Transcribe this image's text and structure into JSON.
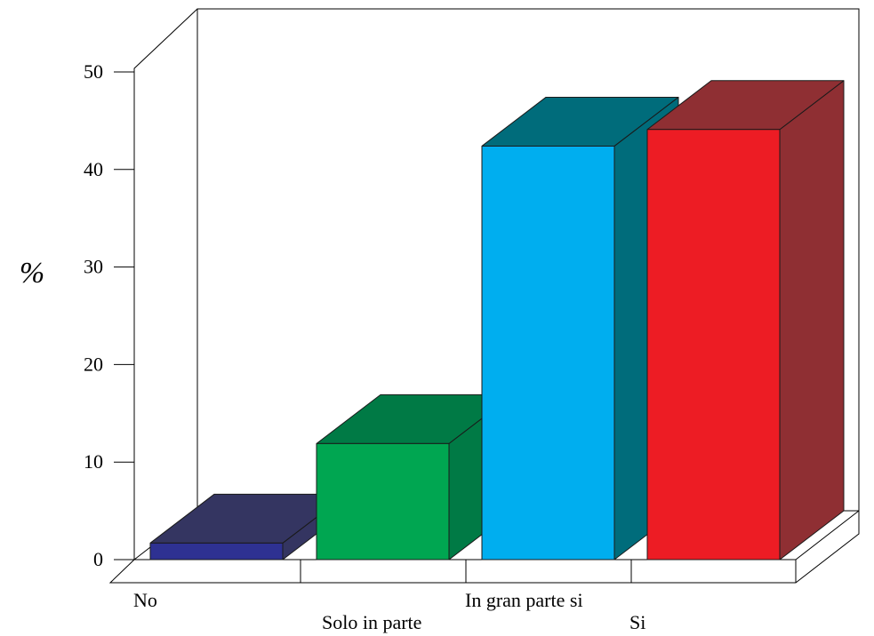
{
  "chart_data": {
    "type": "bar",
    "style": "3d",
    "categories": [
      "No",
      "Solo in parte",
      "In gran parte si",
      "Si"
    ],
    "values": [
      1.7,
      11.9,
      42.4,
      44.1
    ],
    "colors": {
      "front": [
        "#2e3192",
        "#00a651",
        "#00aeef",
        "#ed1c24"
      ],
      "top": [
        "#343561",
        "#007a45",
        "#006c7b",
        "#8f2f33"
      ],
      "side": [
        "#343561",
        "#007a45",
        "#006c7b",
        "#8f2f33"
      ]
    },
    "ylabel": "%",
    "xlabel": "",
    "ylim": [
      0,
      50
    ],
    "yticks": [
      0,
      10,
      20,
      30,
      40,
      50
    ],
    "yticklabels": [
      "0",
      "10",
      "20",
      "30",
      "40",
      "50"
    ],
    "grid": false,
    "legend": "none"
  }
}
